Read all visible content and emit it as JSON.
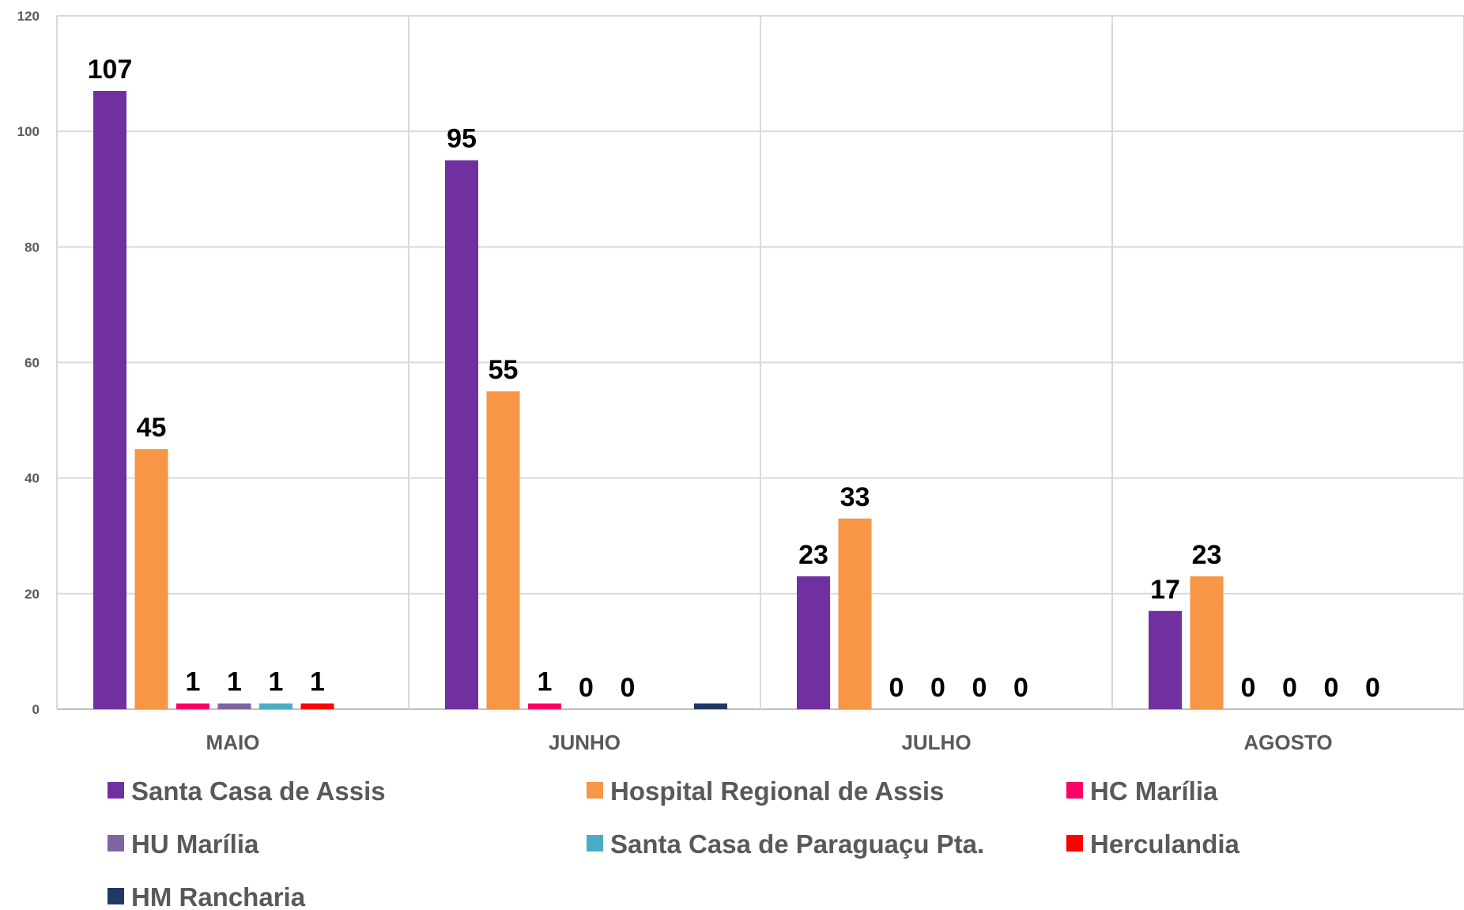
{
  "chart_data": {
    "type": "bar",
    "categories": [
      "MAIO",
      "JUNHO",
      "JULHO",
      "AGOSTO"
    ],
    "series": [
      {
        "name": "Santa Casa de Assis",
        "color": "#7030A0",
        "values": [
          107,
          95,
          23,
          17
        ],
        "labels": [
          "107",
          "95",
          "23",
          "17"
        ]
      },
      {
        "name": "Hospital Regional de Assis",
        "color": "#F79646",
        "values": [
          45,
          55,
          33,
          23
        ],
        "labels": [
          "45",
          "55",
          "33",
          "23"
        ]
      },
      {
        "name": "HC Marília",
        "color": "#FF0066",
        "values": [
          1,
          1,
          0,
          0
        ],
        "labels": [
          "1",
          "1",
          "0",
          "0"
        ]
      },
      {
        "name": "HU Marília",
        "color": "#8064A2",
        "values": [
          1,
          0,
          0,
          0
        ],
        "labels": [
          "1",
          "0",
          "0",
          "0"
        ]
      },
      {
        "name": "Santa Casa de Paraguaçu Pta.",
        "color": "#4BACC6",
        "values": [
          1,
          0,
          0,
          0
        ],
        "labels": [
          "1",
          "0",
          "0",
          "0"
        ]
      },
      {
        "name": "Herculandia",
        "color": "#FF0000",
        "values": [
          1,
          null,
          0,
          0
        ],
        "labels": [
          "1",
          "",
          "0",
          "0"
        ]
      },
      {
        "name": "HM Rancharia",
        "color": "#1F3864",
        "values": [
          null,
          1,
          null,
          null
        ],
        "labels": [
          "",
          "",
          "",
          ""
        ]
      }
    ],
    "yticks": [
      "0",
      "20",
      "40",
      "60",
      "80",
      "100",
      "120"
    ],
    "ylim": [
      0,
      120
    ],
    "grid": true,
    "legend_position": "bottom"
  }
}
